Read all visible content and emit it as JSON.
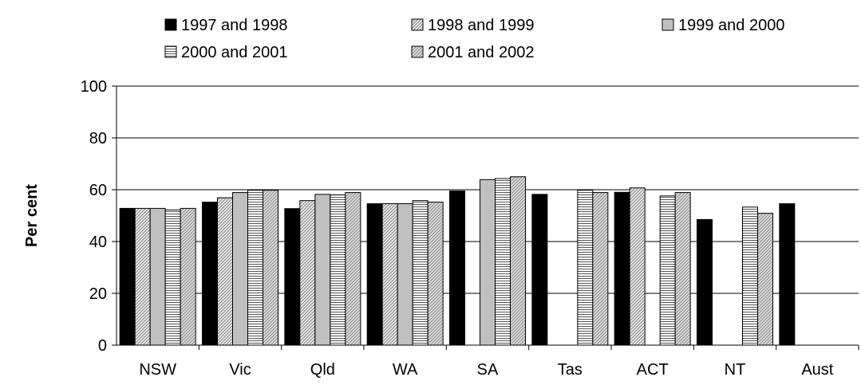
{
  "chart_data": {
    "type": "bar",
    "title": "",
    "xlabel": "",
    "ylabel": "Per cent",
    "ylim": [
      0,
      100
    ],
    "yticks": [
      "0",
      "20",
      "40",
      "60",
      "80",
      "100"
    ],
    "grid": true,
    "legend_position": "top",
    "categories": [
      "NSW",
      "Vic",
      "Qld",
      "WA",
      "SA",
      "Tas",
      "ACT",
      "NT",
      "Aust"
    ],
    "series": [
      {
        "name": "1997 and 1998",
        "pattern": "solid",
        "color": "#000000",
        "values": [
          52.8,
          55.2,
          52.7,
          54.6,
          59.5,
          58.2,
          59.0,
          48.5,
          54.6
        ]
      },
      {
        "name": "1998 and 1999",
        "pattern": "diagonal",
        "color": "#d9d9d9",
        "values": [
          52.8,
          56.9,
          55.8,
          54.6,
          null,
          null,
          60.7,
          null,
          null
        ]
      },
      {
        "name": "1999 and 2000",
        "pattern": "plain",
        "color": "#c0c0c0",
        "values": [
          52.8,
          58.9,
          58.2,
          54.6,
          63.9,
          null,
          null,
          null,
          null
        ]
      },
      {
        "name": "2000 and 2001",
        "pattern": "horizontal",
        "color": "#ffffff",
        "values": [
          52.2,
          59.8,
          58.0,
          55.8,
          64.3,
          59.8,
          57.6,
          53.3,
          null
        ]
      },
      {
        "name": "2001 and 2002",
        "pattern": "diagonal",
        "color": "#cccccc",
        "values": [
          52.8,
          59.8,
          58.9,
          55.2,
          65.0,
          58.9,
          58.9,
          50.9,
          null
        ]
      }
    ]
  }
}
